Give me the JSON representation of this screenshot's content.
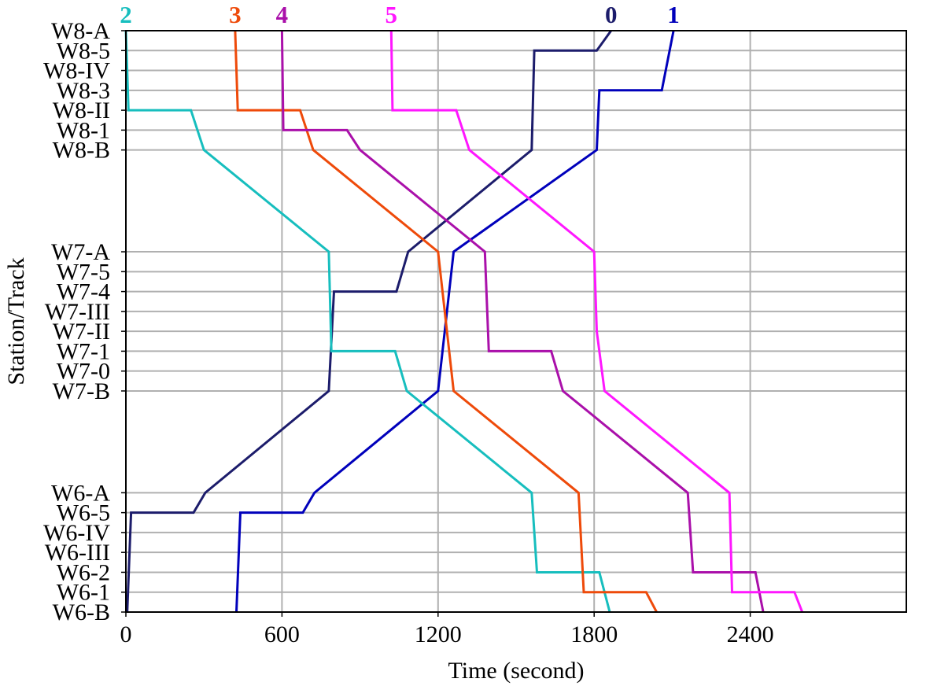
{
  "chart_data": {
    "type": "line",
    "title": "",
    "xlabel": "Time (second)",
    "ylabel": "Station/Track",
    "xlim": [
      0,
      3000
    ],
    "xticks": [
      0,
      600,
      1200,
      1800,
      2400
    ],
    "grid": true,
    "legend": "none",
    "y_tracks": [
      {
        "label": "W8-A",
        "pos": 0
      },
      {
        "label": "W8-5",
        "pos": 1
      },
      {
        "label": "W8-IV",
        "pos": 2
      },
      {
        "label": "W8-3",
        "pos": 3
      },
      {
        "label": "W8-II",
        "pos": 4
      },
      {
        "label": "W8-1",
        "pos": 5
      },
      {
        "label": "W8-B",
        "pos": 6
      },
      {
        "label": "W7-A",
        "pos": 11.12
      },
      {
        "label": "W7-5",
        "pos": 12.12
      },
      {
        "label": "W7-4",
        "pos": 13.12
      },
      {
        "label": "W7-III",
        "pos": 14.12
      },
      {
        "label": "W7-II",
        "pos": 15.12
      },
      {
        "label": "W7-1",
        "pos": 16.12
      },
      {
        "label": "W7-0",
        "pos": 17.12
      },
      {
        "label": "W7-B",
        "pos": 18.12
      },
      {
        "label": "W6-A",
        "pos": 23.24
      },
      {
        "label": "W6-5",
        "pos": 24.24
      },
      {
        "label": "W6-IV",
        "pos": 25.24
      },
      {
        "label": "W6-III",
        "pos": 26.24
      },
      {
        "label": "W6-2",
        "pos": 27.24
      },
      {
        "label": "W6-1",
        "pos": 28.24
      },
      {
        "label": "W6-B",
        "pos": 29.24
      }
    ],
    "series": [
      {
        "name": "0",
        "color": "#1c1c6b",
        "points": [
          [
            1865,
            0
          ],
          [
            1810,
            1
          ],
          [
            1570,
            1
          ],
          [
            1560,
            6
          ],
          [
            1085,
            11.12
          ],
          [
            1040,
            13.12
          ],
          [
            800,
            13.12
          ],
          [
            780,
            18.12
          ],
          [
            305,
            23.24
          ],
          [
            260,
            24.24
          ],
          [
            20,
            24.24
          ],
          [
            5,
            29.24
          ]
        ]
      },
      {
        "name": "1",
        "color": "#0000bb",
        "points": [
          [
            2105,
            0
          ],
          [
            2060,
            3
          ],
          [
            1820,
            3
          ],
          [
            1810,
            6
          ],
          [
            1260,
            11.12
          ],
          [
            1200,
            18.12
          ],
          [
            725,
            23.24
          ],
          [
            680,
            24.24
          ],
          [
            440,
            24.24
          ],
          [
            425,
            29.24
          ]
        ]
      },
      {
        "name": "2",
        "color": "#17bebe",
        "points": [
          [
            0,
            0
          ],
          [
            10,
            4
          ],
          [
            250,
            4
          ],
          [
            300,
            6
          ],
          [
            780,
            11.12
          ],
          [
            790,
            16.12
          ],
          [
            1035,
            16.12
          ],
          [
            1080,
            18.12
          ],
          [
            1560,
            23.24
          ],
          [
            1580,
            27.24
          ],
          [
            1820,
            27.24
          ],
          [
            1860,
            29.24
          ]
        ]
      },
      {
        "name": "3",
        "color": "#ee4a0a",
        "points": [
          [
            420,
            0
          ],
          [
            430,
            4
          ],
          [
            670,
            4
          ],
          [
            720,
            6
          ],
          [
            1200,
            11.12
          ],
          [
            1260,
            18.12
          ],
          [
            1740,
            23.24
          ],
          [
            1760,
            28.24
          ],
          [
            2000,
            28.24
          ],
          [
            2040,
            29.24
          ]
        ]
      },
      {
        "name": "4",
        "color": "#aa10aa",
        "points": [
          [
            600,
            0
          ],
          [
            605,
            5
          ],
          [
            850,
            5
          ],
          [
            900,
            6
          ],
          [
            1380,
            11.12
          ],
          [
            1395,
            16.12
          ],
          [
            1635,
            16.12
          ],
          [
            1680,
            18.12
          ],
          [
            2160,
            23.24
          ],
          [
            2180,
            27.24
          ],
          [
            2420,
            27.24
          ],
          [
            2450,
            29.24
          ]
        ]
      },
      {
        "name": "5",
        "color": "#ff17ff",
        "points": [
          [
            1020,
            0
          ],
          [
            1025,
            4
          ],
          [
            1270,
            4
          ],
          [
            1320,
            6
          ],
          [
            1800,
            11.12
          ],
          [
            1810,
            15.12
          ],
          [
            1840,
            18.12
          ],
          [
            2320,
            23.24
          ],
          [
            2330,
            28.24
          ],
          [
            2570,
            28.24
          ],
          [
            2600,
            29.24
          ]
        ]
      }
    ]
  }
}
